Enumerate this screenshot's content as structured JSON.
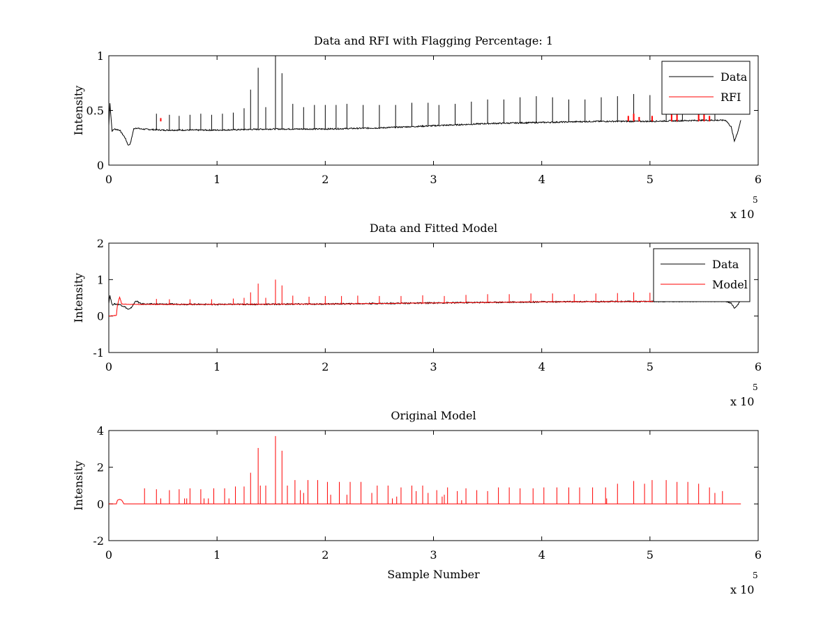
{
  "chart_data": [
    {
      "type": "line",
      "title": "Data and RFI with Flagging Percentage: 1",
      "xlabel": "",
      "ylabel": "Intensity",
      "xlim": [
        0,
        6
      ],
      "ylim": [
        0,
        1
      ],
      "x_ticks": [
        "0",
        "1",
        "2",
        "3",
        "4",
        "5",
        "6"
      ],
      "y_ticks": [
        "0",
        "0.5",
        "1"
      ],
      "x_multiplier": {
        "base": "x 10",
        "exponent": "5"
      },
      "legend": {
        "position": "top-right",
        "entries": [
          {
            "label": "Data",
            "color": "#000000"
          },
          {
            "label": "RFI",
            "color": "#ff0000"
          }
        ]
      },
      "series": [
        {
          "name": "Data",
          "color": "#000000",
          "x": [
            0,
            0.01,
            0.03,
            0.05,
            0.1,
            0.15,
            0.18,
            0.2,
            0.23,
            0.25,
            0.3,
            0.5,
            1.0,
            1.5,
            2.0,
            2.5,
            3.0,
            3.5,
            4.0,
            4.5,
            5.0,
            5.5,
            5.7,
            5.75,
            5.78,
            5.81,
            5.84
          ],
          "y": [
            0.36,
            0.57,
            0.31,
            0.33,
            0.32,
            0.25,
            0.18,
            0.2,
            0.33,
            0.34,
            0.33,
            0.32,
            0.32,
            0.33,
            0.33,
            0.34,
            0.36,
            0.38,
            0.39,
            0.4,
            0.4,
            0.41,
            0.41,
            0.35,
            0.22,
            0.3,
            0.41
          ],
          "spikes": [
            [
              0.44,
              0.47
            ],
            [
              0.56,
              0.46
            ],
            [
              0.65,
              0.45
            ],
            [
              0.75,
              0.46
            ],
            [
              0.85,
              0.47
            ],
            [
              0.95,
              0.46
            ],
            [
              1.05,
              0.47
            ],
            [
              1.15,
              0.48
            ],
            [
              1.25,
              0.52
            ],
            [
              1.31,
              0.69
            ],
            [
              1.38,
              0.89
            ],
            [
              1.45,
              0.53
            ],
            [
              1.54,
              1.0
            ],
            [
              1.6,
              0.84
            ],
            [
              1.7,
              0.56
            ],
            [
              1.8,
              0.53
            ],
            [
              1.9,
              0.55
            ],
            [
              2.0,
              0.55
            ],
            [
              2.1,
              0.55
            ],
            [
              2.2,
              0.56
            ],
            [
              2.35,
              0.55
            ],
            [
              2.5,
              0.55
            ],
            [
              2.65,
              0.55
            ],
            [
              2.8,
              0.57
            ],
            [
              2.95,
              0.57
            ],
            [
              3.05,
              0.55
            ],
            [
              3.2,
              0.56
            ],
            [
              3.35,
              0.58
            ],
            [
              3.5,
              0.6
            ],
            [
              3.65,
              0.6
            ],
            [
              3.8,
              0.62
            ],
            [
              3.95,
              0.63
            ],
            [
              4.1,
              0.62
            ],
            [
              4.25,
              0.6
            ],
            [
              4.4,
              0.6
            ],
            [
              4.55,
              0.62
            ],
            [
              4.7,
              0.63
            ],
            [
              4.85,
              0.65
            ],
            [
              5.0,
              0.64
            ],
            [
              5.15,
              0.66
            ],
            [
              5.3,
              0.65
            ],
            [
              5.45,
              0.64
            ],
            [
              5.6,
              0.6
            ]
          ]
        },
        {
          "name": "RFI",
          "color": "#ff0000",
          "x": [
            0.48,
            4.8,
            4.85,
            4.9,
            5.02,
            5.2,
            5.25,
            5.45,
            5.5,
            5.55
          ],
          "y": [
            0.43,
            0.45,
            0.47,
            0.44,
            0.45,
            0.5,
            0.52,
            0.5,
            0.47,
            0.45
          ]
        }
      ]
    },
    {
      "type": "line",
      "title": "Data and Fitted Model",
      "xlabel": "",
      "ylabel": "Intensity",
      "xlim": [
        0,
        6
      ],
      "ylim": [
        -1,
        2
      ],
      "x_ticks": [
        "0",
        "1",
        "2",
        "3",
        "4",
        "5",
        "6"
      ],
      "y_ticks": [
        "-1",
        "0",
        "1",
        "2"
      ],
      "x_multiplier": {
        "base": "x 10",
        "exponent": "5"
      },
      "legend": {
        "position": "top-right",
        "entries": [
          {
            "label": "Data",
            "color": "#000000"
          },
          {
            "label": "Model",
            "color": "#ff0000"
          }
        ]
      },
      "series": [
        {
          "name": "Data",
          "color": "#000000",
          "x": [
            0,
            0.01,
            0.03,
            0.05,
            0.1,
            0.15,
            0.18,
            0.2,
            0.23,
            0.25,
            0.3,
            1.0,
            2.0,
            3.0,
            4.0,
            5.0,
            5.7,
            5.75,
            5.78,
            5.81,
            5.84
          ],
          "y": [
            0.36,
            0.57,
            0.31,
            0.33,
            0.32,
            0.25,
            0.18,
            0.2,
            0.33,
            0.42,
            0.33,
            0.32,
            0.33,
            0.36,
            0.39,
            0.4,
            0.41,
            0.35,
            0.22,
            0.3,
            0.48
          ]
        },
        {
          "name": "Model",
          "color": "#ff0000",
          "x": [
            0,
            0.07,
            0.08,
            0.1,
            0.12,
            0.2,
            1.0,
            2.0,
            3.0,
            4.0,
            5.0,
            5.8
          ],
          "y": [
            0.0,
            0.02,
            0.3,
            0.52,
            0.33,
            0.32,
            0.32,
            0.33,
            0.36,
            0.39,
            0.4,
            0.41
          ],
          "spikes": [
            [
              0.44,
              0.47
            ],
            [
              0.56,
              0.46
            ],
            [
              0.75,
              0.46
            ],
            [
              0.95,
              0.46
            ],
            [
              1.15,
              0.48
            ],
            [
              1.25,
              0.5
            ],
            [
              1.31,
              0.65
            ],
            [
              1.38,
              0.89
            ],
            [
              1.45,
              0.5
            ],
            [
              1.54,
              1.0
            ],
            [
              1.6,
              0.84
            ],
            [
              1.7,
              0.56
            ],
            [
              1.85,
              0.53
            ],
            [
              2.0,
              0.55
            ],
            [
              2.15,
              0.55
            ],
            [
              2.3,
              0.56
            ],
            [
              2.5,
              0.55
            ],
            [
              2.7,
              0.55
            ],
            [
              2.9,
              0.57
            ],
            [
              3.1,
              0.55
            ],
            [
              3.3,
              0.58
            ],
            [
              3.5,
              0.6
            ],
            [
              3.7,
              0.6
            ],
            [
              3.9,
              0.62
            ],
            [
              4.1,
              0.62
            ],
            [
              4.3,
              0.6
            ],
            [
              4.5,
              0.62
            ],
            [
              4.7,
              0.63
            ],
            [
              4.85,
              0.65
            ],
            [
              5.0,
              0.64
            ],
            [
              5.15,
              0.66
            ],
            [
              5.3,
              0.65
            ],
            [
              5.45,
              0.64
            ]
          ]
        }
      ]
    },
    {
      "type": "line",
      "title": "Original Model",
      "xlabel": "Sample Number",
      "ylabel": "Intensity",
      "xlim": [
        0,
        6
      ],
      "ylim": [
        -2,
        4
      ],
      "x_ticks": [
        "0",
        "1",
        "2",
        "3",
        "4",
        "5",
        "6"
      ],
      "y_ticks": [
        "-2",
        "0",
        "2",
        "4"
      ],
      "x_multiplier": {
        "base": "x 10",
        "exponent": "5"
      },
      "series": [
        {
          "name": "Model",
          "color": "#ff0000",
          "x": [
            0,
            0.07,
            0.08,
            0.1,
            0.12,
            0.14,
            5.84
          ],
          "y": [
            0.0,
            0.0,
            0.2,
            0.25,
            0.2,
            0.0,
            0.0
          ],
          "spikes": [
            [
              0.33,
              0.85
            ],
            [
              0.44,
              0.8
            ],
            [
              0.48,
              0.3
            ],
            [
              0.56,
              0.75
            ],
            [
              0.65,
              0.8
            ],
            [
              0.7,
              0.3
            ],
            [
              0.72,
              0.3
            ],
            [
              0.75,
              0.85
            ],
            [
              0.85,
              0.8
            ],
            [
              0.88,
              0.3
            ],
            [
              0.92,
              0.3
            ],
            [
              0.97,
              0.85
            ],
            [
              1.07,
              0.85
            ],
            [
              1.11,
              0.3
            ],
            [
              1.17,
              0.95
            ],
            [
              1.25,
              0.95
            ],
            [
              1.31,
              1.7
            ],
            [
              1.38,
              3.05
            ],
            [
              1.4,
              1.0
            ],
            [
              1.45,
              1.0
            ],
            [
              1.54,
              3.7
            ],
            [
              1.6,
              2.9
            ],
            [
              1.65,
              1.0
            ],
            [
              1.72,
              1.3
            ],
            [
              1.77,
              0.75
            ],
            [
              1.8,
              0.6
            ],
            [
              1.84,
              1.3
            ],
            [
              1.93,
              1.3
            ],
            [
              2.02,
              1.2
            ],
            [
              2.05,
              0.5
            ],
            [
              2.13,
              1.2
            ],
            [
              2.2,
              0.5
            ],
            [
              2.23,
              1.2
            ],
            [
              2.33,
              1.2
            ],
            [
              2.43,
              0.6
            ],
            [
              2.48,
              1.0
            ],
            [
              2.58,
              1.0
            ],
            [
              2.62,
              0.3
            ],
            [
              2.66,
              0.4
            ],
            [
              2.7,
              0.9
            ],
            [
              2.8,
              1.0
            ],
            [
              2.84,
              0.7
            ],
            [
              2.9,
              1.0
            ],
            [
              2.95,
              0.6
            ],
            [
              3.03,
              0.75
            ],
            [
              3.08,
              0.4
            ],
            [
              3.1,
              0.5
            ],
            [
              3.13,
              0.9
            ],
            [
              3.22,
              0.7
            ],
            [
              3.26,
              0.2
            ],
            [
              3.3,
              0.85
            ],
            [
              3.4,
              0.75
            ],
            [
              3.5,
              0.7
            ],
            [
              3.6,
              0.9
            ],
            [
              3.7,
              0.9
            ],
            [
              3.8,
              0.85
            ],
            [
              3.92,
              0.85
            ],
            [
              4.02,
              0.9
            ],
            [
              4.14,
              0.9
            ],
            [
              4.25,
              0.9
            ],
            [
              4.35,
              0.9
            ],
            [
              4.47,
              0.9
            ],
            [
              4.59,
              0.9
            ],
            [
              4.6,
              0.3
            ],
            [
              4.7,
              1.1
            ],
            [
              4.85,
              1.25
            ],
            [
              4.95,
              1.1
            ],
            [
              5.02,
              1.3
            ],
            [
              5.15,
              1.3
            ],
            [
              5.25,
              1.2
            ],
            [
              5.35,
              1.2
            ],
            [
              5.45,
              1.1
            ],
            [
              5.55,
              0.9
            ],
            [
              5.6,
              0.6
            ],
            [
              5.67,
              0.7
            ]
          ]
        }
      ]
    }
  ]
}
